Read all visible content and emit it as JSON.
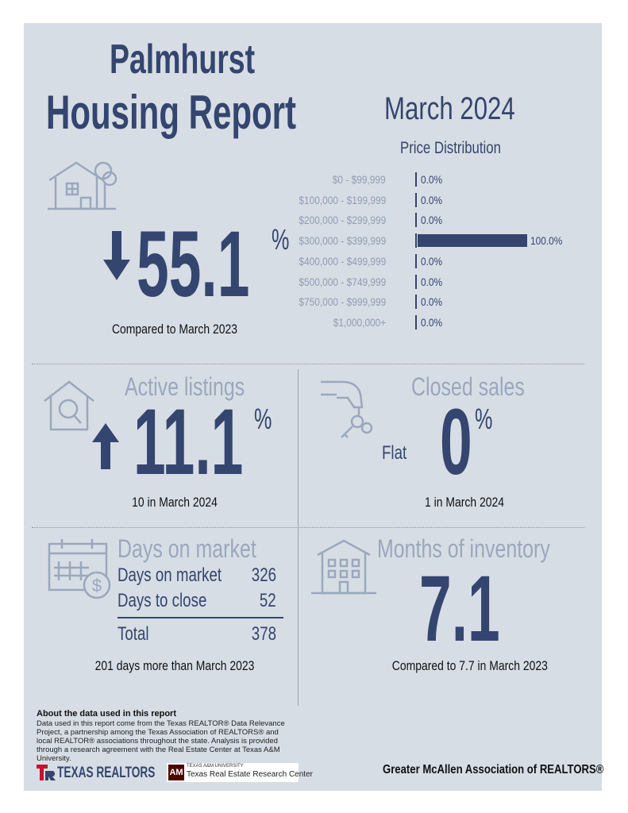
{
  "header": {
    "city": "Palmhurst",
    "report_title": "Housing Report",
    "period": "March 2024"
  },
  "price_distribution": {
    "title": "Price Distribution",
    "rows": [
      {
        "range": "$0 - $99,999",
        "value_label": "0.0%",
        "value": 0.0
      },
      {
        "range": "$100,000 - $199,999",
        "value_label": "0.0%",
        "value": 0.0
      },
      {
        "range": "$200,000 - $299,999",
        "value_label": "0.0%",
        "value": 0.0
      },
      {
        "range": "$300,000 - $399,999",
        "value_label": "100.0%",
        "value": 100.0
      },
      {
        "range": "$400,000 - $499,999",
        "value_label": "0.0%",
        "value": 0.0
      },
      {
        "range": "$500,000 - $749,999",
        "value_label": "0.0%",
        "value": 0.0
      },
      {
        "range": "$750,000 - $999,999",
        "value_label": "0.0%",
        "value": 0.0
      },
      {
        "range": "$1,000,000+",
        "value_label": "0.0%",
        "value": 0.0
      }
    ]
  },
  "median_price": {
    "direction": "down",
    "value": "55.1",
    "unit": "%",
    "caption": "Compared to March 2023"
  },
  "active_listings": {
    "title": "Active listings",
    "direction": "up",
    "value": "11.1",
    "unit": "%",
    "caption": "10 in March 2024"
  },
  "closed_sales": {
    "title": "Closed sales",
    "trend": "Flat",
    "value": "0",
    "unit": "%",
    "caption": "1 in March 2024"
  },
  "days_on_market": {
    "title": "Days on market",
    "rows": [
      {
        "label": "Days on market",
        "value": "326"
      },
      {
        "label": "Days to close",
        "value": "52"
      }
    ],
    "total_label": "Total",
    "total_value": "378",
    "caption": "201 days more than March 2023"
  },
  "months_inventory": {
    "title": "Months of inventory",
    "value": "7.1",
    "caption": "Compared to 7.7 in March 2023"
  },
  "about": {
    "title": "About the data used in this report",
    "body": "Data used in this report come from the Texas REALTOR® Data Relevance Project, a partnership among the Texas Association of REALTORS® and local REALTOR® associations throughout the state. Analysis is provided through a research agreement with the Real Estate Center at Texas A&M University."
  },
  "footer": {
    "texas_realtors_logo": "TEXAS REALTORS",
    "tamu_small": "TEXAS A&M UNIVERSITY",
    "tamu_center": "Texas Real Estate Research Center",
    "association": "Greater McAllen Association of REALTORS®"
  },
  "colors": {
    "background": "#d7dde4",
    "navy": "#34466f",
    "muted": "#9aa8bd",
    "accent_red": "#c8102e",
    "maroon": "#500000"
  }
}
